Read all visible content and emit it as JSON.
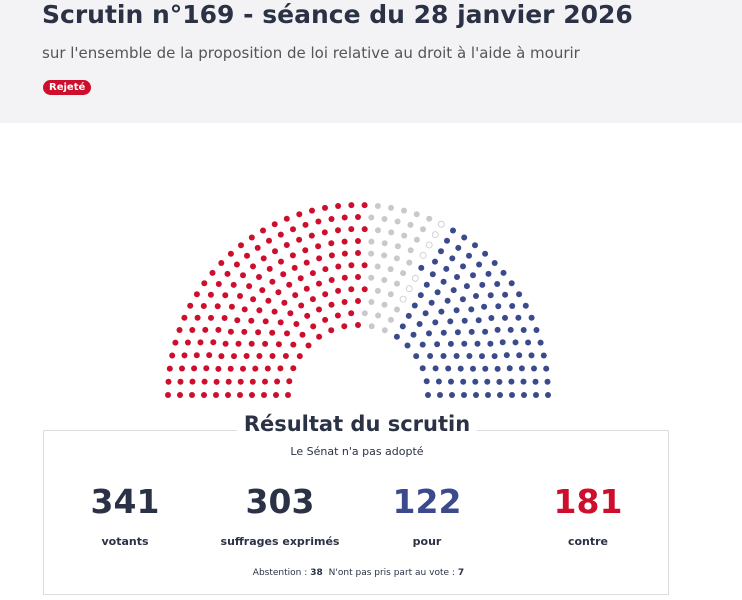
{
  "header": {
    "title": "Scrutin n°169 - séance du 28 janvier 2026",
    "subtitle": "sur l'ensemble de la proposition de loi relative au droit à l'aide à mourir",
    "badge": "Rejeté"
  },
  "result": {
    "heading": "Résultat du scrutin",
    "verdict": "Le Sénat n'a pas adopté",
    "stats": [
      {
        "value": 341,
        "label": "votants",
        "color": "#2b3245"
      },
      {
        "value": 303,
        "label": "suffrages exprimés",
        "color": "#2b3245"
      },
      {
        "value": 122,
        "label": "pour",
        "color": "#3b4a8c"
      },
      {
        "value": 181,
        "label": "contre",
        "color": "#ce0e2d"
      }
    ],
    "footnote": [
      {
        "label": "Abstention :",
        "value": 38,
        "color": "#c9c9cd"
      },
      {
        "label": "N'ont pas pris part au vote :",
        "value": 7,
        "color": "#ffffff"
      }
    ]
  }
}
